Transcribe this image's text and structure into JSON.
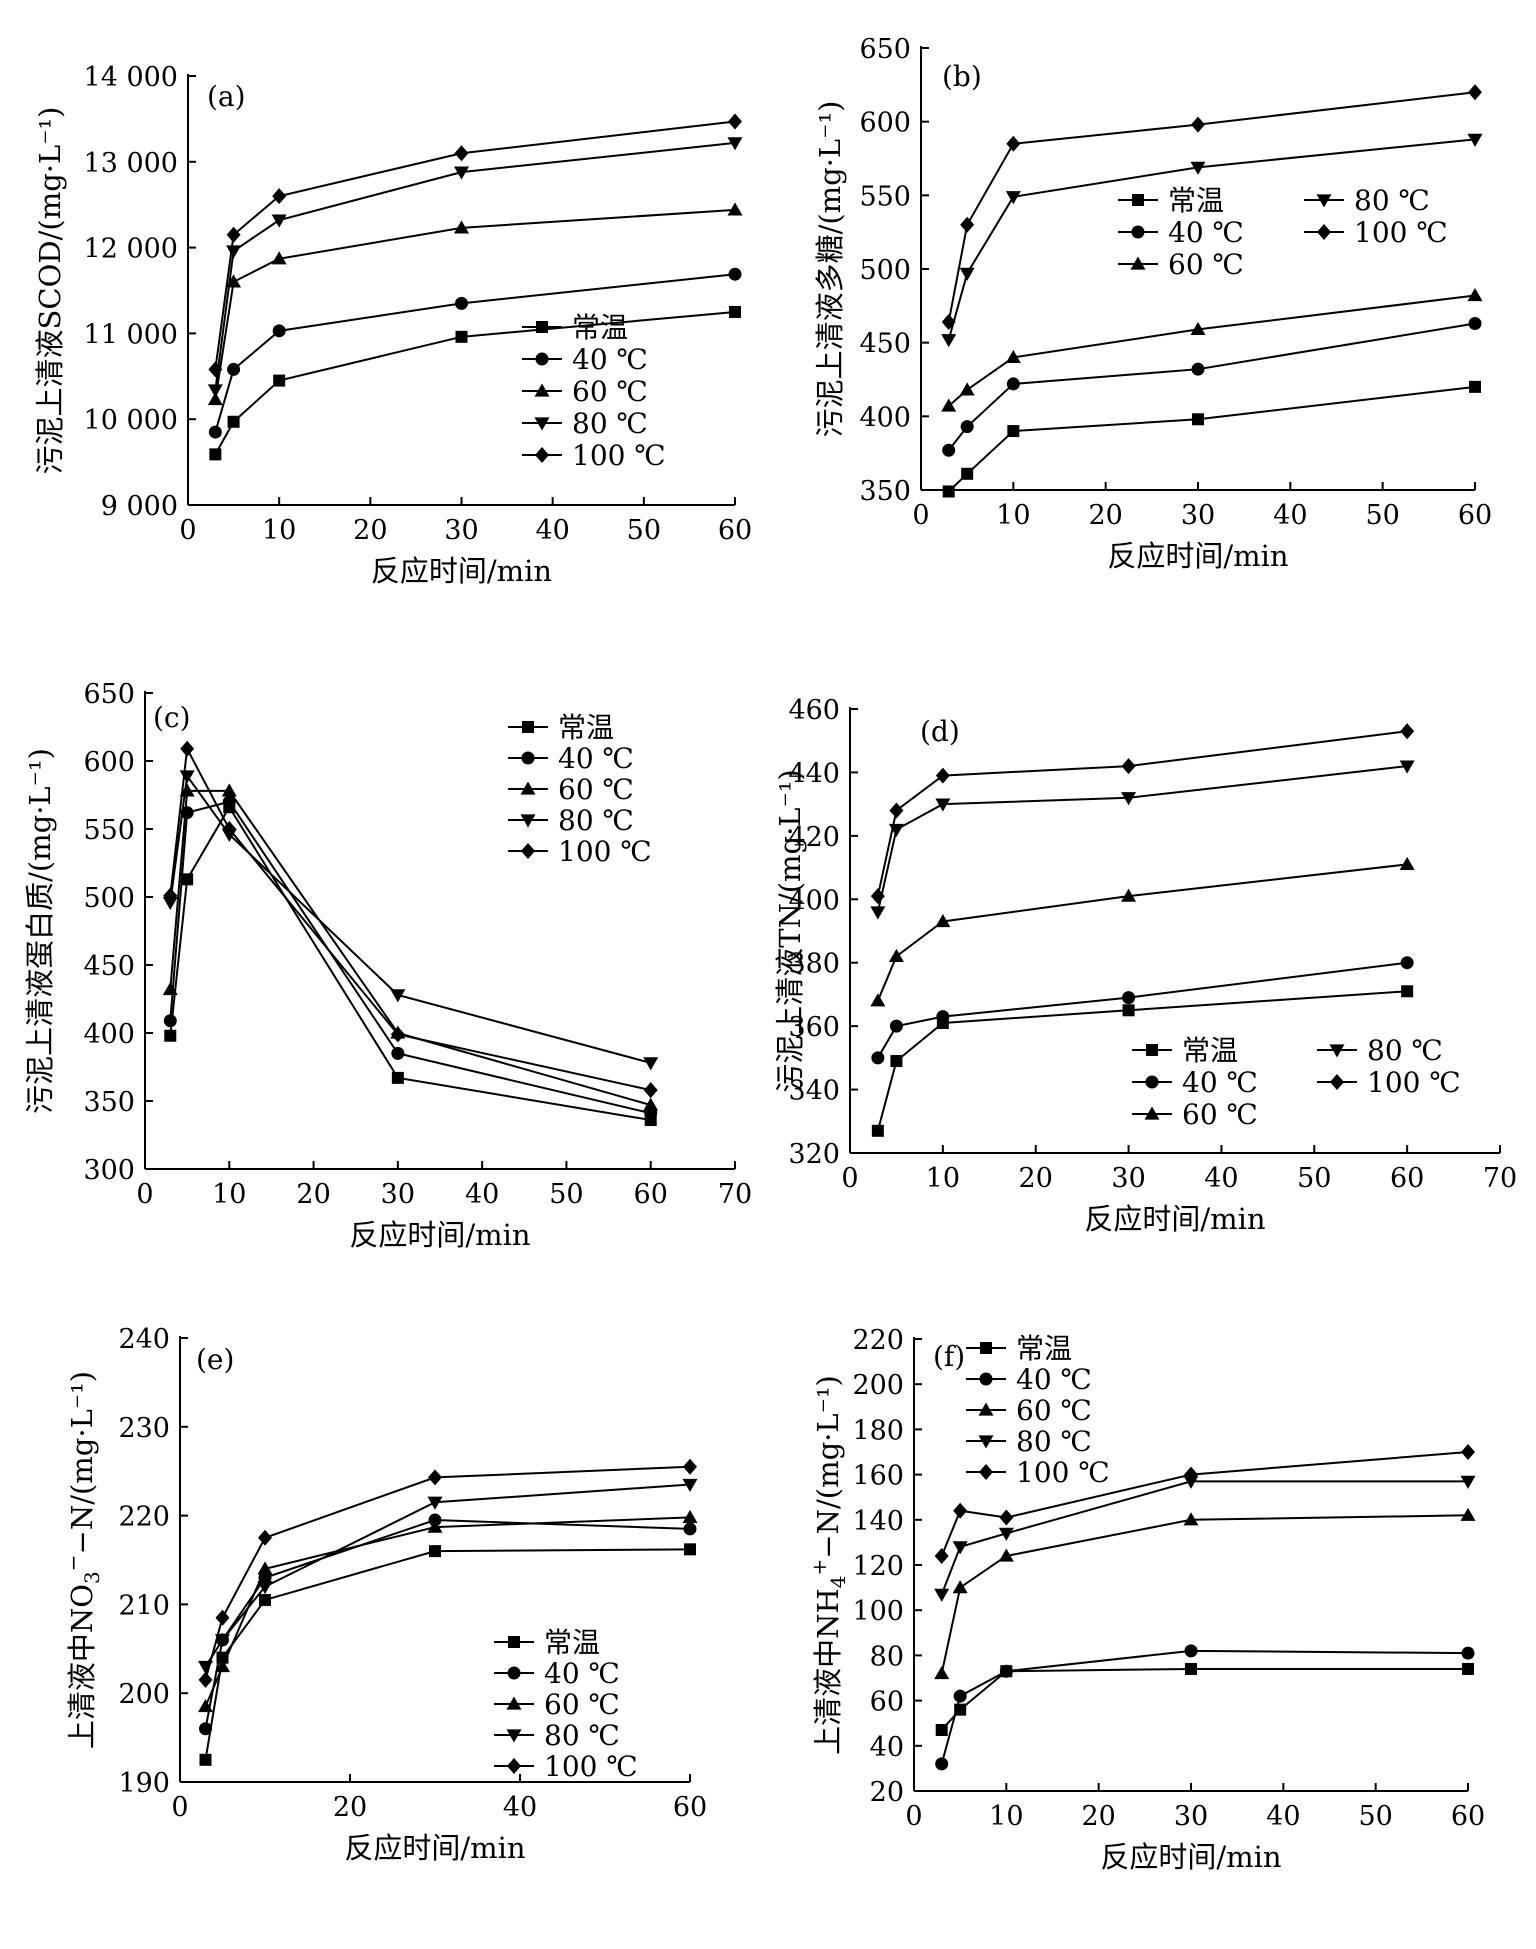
{
  "chart_data": [
    {
      "type": "line",
      "panel_label": "(a)",
      "xlabel": "反应时间/min",
      "ylabel": "污泥上清液SCOD/(mg·L⁻¹)",
      "xlim": [
        0,
        60
      ],
      "ylim": [
        9000,
        14000
      ],
      "x_ticks": [
        "0",
        "10",
        "20",
        "30",
        "40",
        "50",
        "60"
      ],
      "y_ticks": [
        "9 000",
        "10 000",
        "11 000",
        "12 000",
        "13 000",
        "14 000"
      ],
      "x": [
        3,
        5,
        10,
        30,
        60
      ],
      "legend_position": "bottom-right",
      "series": [
        {
          "name": "常温",
          "marker": "square",
          "values": [
            9590,
            9970,
            10450,
            10960,
            11250
          ]
        },
        {
          "name": "40 ℃",
          "marker": "circle",
          "values": [
            9850,
            10580,
            11030,
            11350,
            11690
          ]
        },
        {
          "name": "60 ℃",
          "marker": "triangle-up",
          "values": [
            10230,
            11600,
            11870,
            12230,
            12440
          ]
        },
        {
          "name": "80 ℃",
          "marker": "triangle-down",
          "values": [
            10340,
            11960,
            12320,
            12880,
            13220
          ]
        },
        {
          "name": "100 ℃",
          "marker": "diamond",
          "values": [
            10580,
            12150,
            12600,
            13100,
            13470
          ]
        }
      ]
    },
    {
      "type": "line",
      "panel_label": "(b)",
      "xlabel": "反应时间/min",
      "ylabel": "污泥上清液多糖/(mg·L⁻¹)",
      "xlim": [
        0,
        60
      ],
      "ylim": [
        350,
        650
      ],
      "x_ticks": [
        "0",
        "10",
        "20",
        "30",
        "40",
        "50",
        "60"
      ],
      "y_ticks": [
        "350",
        "400",
        "450",
        "500",
        "550",
        "600",
        "650"
      ],
      "x": [
        3,
        5,
        10,
        30,
        60
      ],
      "legend_position": "middle-right",
      "series": [
        {
          "name": "常温",
          "marker": "square",
          "values": [
            349,
            361,
            390,
            398,
            420
          ]
        },
        {
          "name": "40 ℃",
          "marker": "circle",
          "values": [
            377,
            393,
            422,
            432,
            463
          ]
        },
        {
          "name": "60 ℃",
          "marker": "triangle-up",
          "values": [
            407,
            418,
            440,
            459,
            482
          ]
        },
        {
          "name": "80 ℃",
          "marker": "triangle-down",
          "values": [
            452,
            497,
            549,
            569,
            588
          ]
        },
        {
          "name": "100 ℃",
          "marker": "diamond",
          "values": [
            464,
            530,
            585,
            598,
            620
          ]
        }
      ]
    },
    {
      "type": "line",
      "panel_label": "(c)",
      "xlabel": "反应时间/min",
      "ylabel": "污泥上清液蛋白质/(mg·L⁻¹)",
      "xlim": [
        0,
        70
      ],
      "ylim": [
        300,
        650
      ],
      "x_ticks": [
        "0",
        "10",
        "20",
        "30",
        "40",
        "50",
        "60",
        "70"
      ],
      "y_ticks": [
        "300",
        "350",
        "400",
        "450",
        "500",
        "550",
        "600",
        "650"
      ],
      "x": [
        3,
        5,
        10,
        30,
        60
      ],
      "legend_position": "top-right",
      "series": [
        {
          "name": "常温",
          "marker": "square",
          "values": [
            398,
            513,
            566,
            367,
            336
          ]
        },
        {
          "name": "40 ℃",
          "marker": "circle",
          "values": [
            409,
            562,
            570,
            385,
            341
          ]
        },
        {
          "name": "60 ℃",
          "marker": "triangle-up",
          "values": [
            432,
            578,
            578,
            400,
            347
          ]
        },
        {
          "name": "80 ℃",
          "marker": "triangle-down",
          "values": [
            496,
            589,
            546,
            428,
            378
          ]
        },
        {
          "name": "100 ℃",
          "marker": "diamond",
          "values": [
            501,
            609,
            550,
            399,
            358
          ]
        }
      ]
    },
    {
      "type": "line",
      "panel_label": "(d)",
      "xlabel": "反应时间/min",
      "ylabel": "污泥上清液TN/(mg·L⁻¹)",
      "xlim": [
        0,
        70
      ],
      "ylim": [
        320,
        460
      ],
      "x_ticks": [
        "0",
        "10",
        "20",
        "30",
        "40",
        "50",
        "60",
        "70"
      ],
      "y_ticks": [
        "320",
        "340",
        "360",
        "380",
        "400",
        "420",
        "440",
        "460"
      ],
      "x": [
        3,
        5,
        10,
        30,
        60
      ],
      "legend_position": "bottom-right",
      "series": [
        {
          "name": "常温",
          "marker": "square",
          "values": [
            327,
            349,
            361,
            365,
            371
          ]
        },
        {
          "name": "40 ℃",
          "marker": "circle",
          "values": [
            350,
            360,
            363,
            369,
            380
          ]
        },
        {
          "name": "60 ℃",
          "marker": "triangle-up",
          "values": [
            368,
            382,
            393,
            401,
            411
          ]
        },
        {
          "name": "80 ℃",
          "marker": "triangle-down",
          "values": [
            396,
            422,
            430,
            432,
            442
          ]
        },
        {
          "name": "100 ℃",
          "marker": "diamond",
          "values": [
            401,
            428,
            439,
            442,
            453
          ]
        }
      ]
    },
    {
      "type": "line",
      "panel_label": "(e)",
      "xlabel": "反应时间/min",
      "ylabel_pre": "上清液中NO",
      "ylabel_sub": "3",
      "ylabel_sup": "−",
      "ylabel_post": "−N/(mg·L⁻¹)",
      "xlim": [
        0,
        60
      ],
      "ylim": [
        190,
        240
      ],
      "x_ticks": [
        "0",
        "20",
        "40",
        "60"
      ],
      "y_ticks": [
        "190",
        "200",
        "210",
        "220",
        "230",
        "240"
      ],
      "x": [
        3,
        5,
        10,
        30,
        60
      ],
      "legend_position": "bottom-right",
      "series": [
        {
          "name": "常温",
          "marker": "square",
          "values": [
            192.5,
            204,
            210.5,
            216,
            216.2
          ]
        },
        {
          "name": "40 ℃",
          "marker": "circle",
          "values": [
            196,
            206,
            213,
            219.5,
            218.5
          ]
        },
        {
          "name": "60 ℃",
          "marker": "triangle-up",
          "values": [
            198.5,
            203,
            214,
            218.7,
            219.8
          ]
        },
        {
          "name": "80 ℃",
          "marker": "triangle-down",
          "values": [
            203,
            206,
            212,
            221.5,
            223.5
          ]
        },
        {
          "name": "100 ℃",
          "marker": "diamond",
          "values": [
            201.5,
            208.5,
            217.5,
            224.3,
            225.5
          ]
        }
      ]
    },
    {
      "type": "line",
      "panel_label": "(f)",
      "xlabel": "反应时间/min",
      "ylabel_pre": "上清液中NH",
      "ylabel_sub": "4",
      "ylabel_sup": "+",
      "ylabel_post": "−N/(mg·L⁻¹)",
      "xlim": [
        0,
        60
      ],
      "ylim": [
        20,
        220
      ],
      "x_ticks": [
        "0",
        "10",
        "20",
        "30",
        "40",
        "50",
        "60"
      ],
      "y_ticks": [
        "20",
        "40",
        "60",
        "80",
        "100",
        "120",
        "140",
        "160",
        "180",
        "200",
        "220"
      ],
      "x": [
        3,
        5,
        10,
        30,
        60
      ],
      "legend_position": "top-left",
      "series": [
        {
          "name": "常温",
          "marker": "square",
          "values": [
            47,
            56,
            73,
            74,
            74
          ]
        },
        {
          "name": "40 ℃",
          "marker": "circle",
          "values": [
            32,
            62,
            73,
            82,
            81
          ]
        },
        {
          "name": "60 ℃",
          "marker": "triangle-up",
          "values": [
            72,
            110,
            124,
            140,
            142
          ]
        },
        {
          "name": "80 ℃",
          "marker": "triangle-down",
          "values": [
            107,
            128,
            134,
            157,
            157
          ]
        },
        {
          "name": "100 ℃",
          "marker": "diamond",
          "values": [
            124,
            144,
            141,
            160,
            170
          ]
        }
      ]
    }
  ]
}
